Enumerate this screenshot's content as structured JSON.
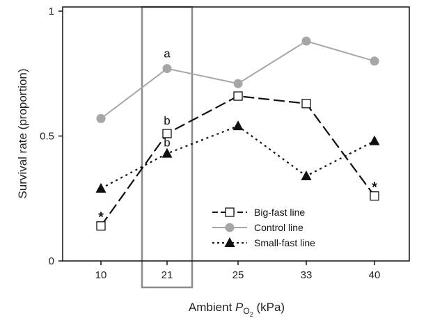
{
  "chart_data": {
    "type": "line",
    "categories": [
      "10",
      "21",
      "25",
      "33",
      "40"
    ],
    "xlabel_prefix": "Ambient ",
    "xlabel_var": "P",
    "xlabel_sub": "O",
    "xlabel_subsub": "2",
    "xlabel_suffix": " (kPa)",
    "ylabel": "Survival rate (proportion)",
    "ylim": [
      0,
      1
    ],
    "yticks": [
      "0",
      "0.5",
      "1"
    ],
    "legend_position": "center-right",
    "highlight_category": "21",
    "series": [
      {
        "name": "Big-fast line",
        "values": [
          0.14,
          0.51,
          0.66,
          0.63,
          0.26
        ],
        "color": "#111111",
        "marker": "square-open",
        "dash": "dashed"
      },
      {
        "name": "Control line",
        "values": [
          0.57,
          0.77,
          0.71,
          0.88,
          0.8
        ],
        "color": "#a6a6a6",
        "marker": "circle",
        "dash": "solid"
      },
      {
        "name": "Small-fast line",
        "values": [
          0.29,
          0.43,
          0.54,
          0.34,
          0.48
        ],
        "color": "#111111",
        "marker": "triangle",
        "dash": "dotted"
      }
    ],
    "annotations": [
      {
        "text": "a",
        "category": "21",
        "series": 1,
        "dy": -16
      },
      {
        "text": "b",
        "category": "21",
        "series": 0,
        "dy": -13
      },
      {
        "text": "b",
        "category": "21",
        "series": 2,
        "dy": -10
      },
      {
        "text": "*",
        "category": "10",
        "series": 0,
        "dy": -8
      },
      {
        "text": "*",
        "category": "40",
        "series": 0,
        "dy": -8
      }
    ]
  }
}
